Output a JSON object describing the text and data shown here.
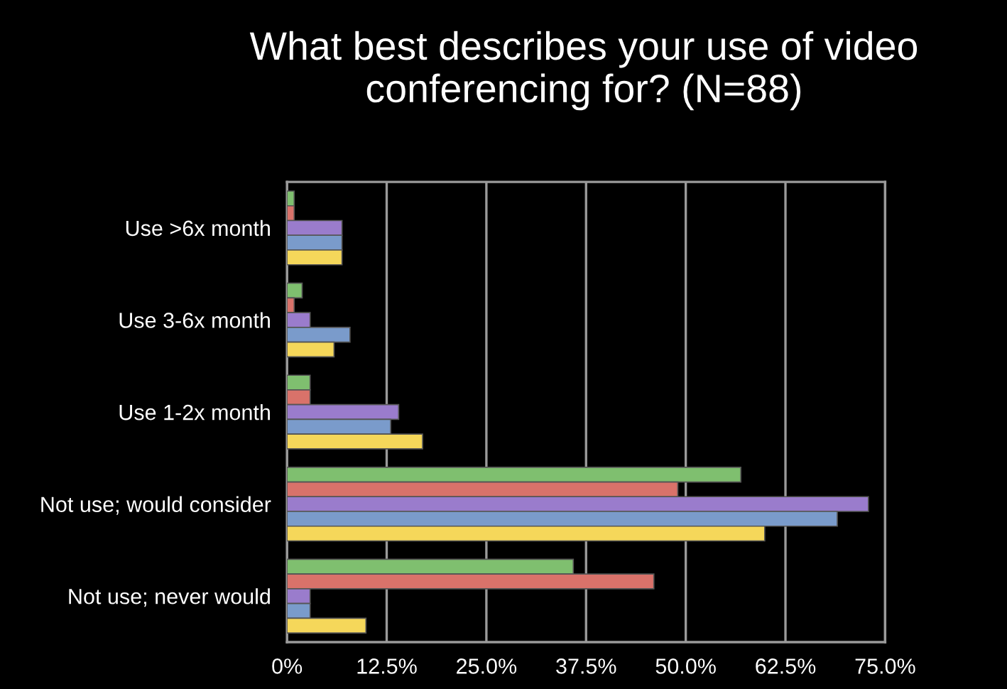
{
  "chart_data": {
    "type": "bar",
    "orientation": "horizontal",
    "title": "What best describes your use of video conferencing for? (N=88)",
    "categories": [
      "Use >6x month",
      "Use 3-6x month",
      "Use 1-2x month",
      "Not use; would consider",
      "Not use; never would"
    ],
    "series": [
      {
        "color": "#7fbf6f",
        "values": [
          0.9,
          1.9,
          2.9,
          56.9,
          35.9
        ]
      },
      {
        "color": "#d9726a",
        "values": [
          0.9,
          0.9,
          2.9,
          49.0,
          46.0
        ]
      },
      {
        "color": "#9a7ccc",
        "values": [
          6.9,
          2.9,
          14.0,
          72.9,
          2.9
        ]
      },
      {
        "color": "#7a9bcb",
        "values": [
          6.9,
          7.9,
          13.0,
          69.0,
          2.9
        ]
      },
      {
        "color": "#f5d75a",
        "values": [
          6.9,
          5.9,
          17.0,
          59.9,
          9.9
        ]
      }
    ],
    "xlim": [
      0,
      75
    ],
    "xticks": [
      {
        "value": 0,
        "label": "0%"
      },
      {
        "value": 12.5,
        "label": "12.5%"
      },
      {
        "value": 25,
        "label": "25.0%"
      },
      {
        "value": 37.5,
        "label": "37.5%"
      },
      {
        "value": 50,
        "label": "50.0%"
      },
      {
        "value": 62.5,
        "label": "62.5%"
      },
      {
        "value": 75,
        "label": "75.0%"
      }
    ],
    "grid": "x"
  }
}
